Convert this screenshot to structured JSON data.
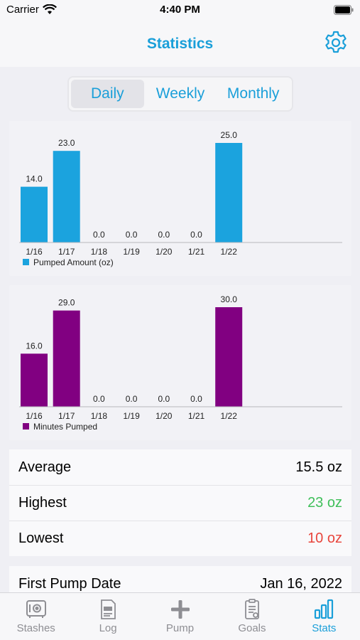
{
  "status_bar": {
    "carrier": "Carrier",
    "time": "4:40 PM"
  },
  "nav": {
    "title": "Statistics",
    "settings_icon": "gear-icon"
  },
  "segments": [
    {
      "label": "Daily",
      "active": true
    },
    {
      "label": "Weekly",
      "active": false
    },
    {
      "label": "Monthly",
      "active": false
    }
  ],
  "colors": {
    "accent": "#1a9fd9",
    "amount_bar": "#1ba3de",
    "minutes_bar": "#810081",
    "highest": "#3fbf5a",
    "lowest": "#e8453c"
  },
  "chart_data": [
    {
      "type": "bar",
      "categories": [
        "1/16",
        "1/17",
        "1/18",
        "1/19",
        "1/20",
        "1/21",
        "1/22"
      ],
      "series": [
        {
          "name": "Pumped Amount (oz)",
          "values": [
            14.0,
            23.0,
            0.0,
            0.0,
            0.0,
            0.0,
            25.0
          ]
        }
      ],
      "data_labels": [
        "14.0",
        "23.0",
        "0.0",
        "0.0",
        "0.0",
        "0.0",
        "25.0"
      ],
      "legend": "bottom-left",
      "grid": false
    },
    {
      "type": "bar",
      "categories": [
        "1/16",
        "1/17",
        "1/18",
        "1/19",
        "1/20",
        "1/21",
        "1/22"
      ],
      "series": [
        {
          "name": "Minutes Pumped",
          "values": [
            16.0,
            29.0,
            0.0,
            0.0,
            0.0,
            0.0,
            30.0
          ]
        }
      ],
      "data_labels": [
        "16.0",
        "29.0",
        "0.0",
        "0.0",
        "0.0",
        "0.0",
        "30.0"
      ],
      "legend": "bottom-left",
      "grid": false
    }
  ],
  "stats": {
    "average": {
      "label": "Average",
      "value": "15.5 oz"
    },
    "highest": {
      "label": "Highest",
      "value": "23 oz"
    },
    "lowest": {
      "label": "Lowest",
      "value": "10 oz"
    },
    "first_pump": {
      "label": "First Pump Date",
      "value": "Jan 16, 2022"
    }
  },
  "tabs": [
    {
      "label": "Stashes",
      "icon": "safe-icon",
      "active": false
    },
    {
      "label": "Log",
      "icon": "log-icon",
      "active": false
    },
    {
      "label": "Pump",
      "icon": "plus-icon",
      "active": false
    },
    {
      "label": "Goals",
      "icon": "checklist-icon",
      "active": false
    },
    {
      "label": "Stats",
      "icon": "bar-chart-icon",
      "active": true
    }
  ]
}
